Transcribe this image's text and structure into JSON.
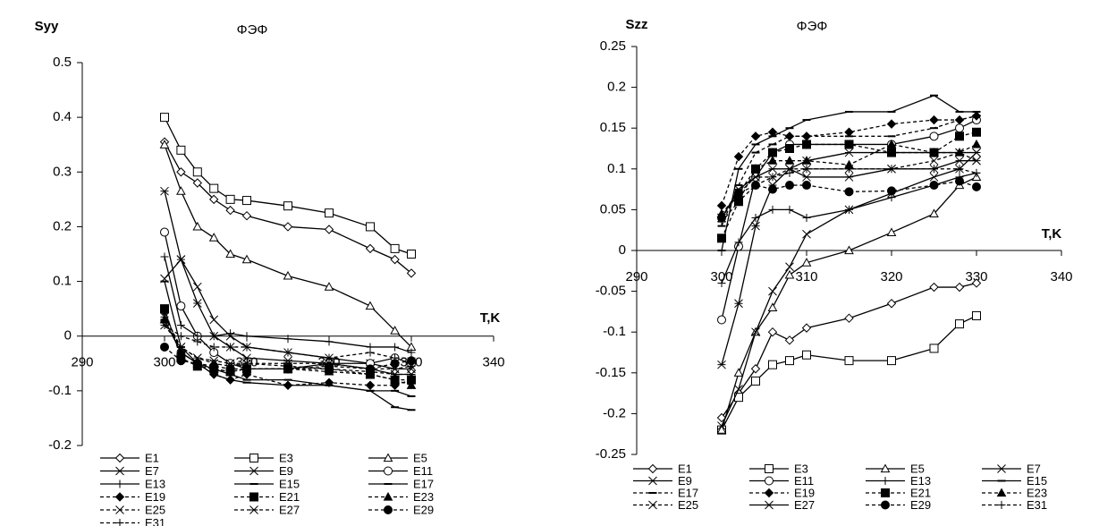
{
  "chart_data": [
    {
      "type": "line",
      "title": "ΦЭΦ",
      "y_label": "Syy",
      "x_label": "T,K",
      "x": [
        300,
        302,
        304,
        306,
        308,
        310,
        315,
        320,
        325,
        328,
        330
      ],
      "xlim": [
        290,
        340
      ],
      "xticks": [
        290,
        300,
        310,
        320,
        330,
        340
      ],
      "ylim": [
        -0.2,
        0.5
      ],
      "yticks": [
        -0.2,
        -0.1,
        0,
        0.1,
        0.2,
        0.3,
        0.4,
        0.5
      ],
      "series": [
        {
          "name": "E1",
          "color": "#000000",
          "marker": "diamond",
          "filled": false,
          "dashed": false,
          "values": [
            0.355,
            0.3,
            0.28,
            0.25,
            0.23,
            0.22,
            0.2,
            0.195,
            0.16,
            0.14,
            0.115
          ]
        },
        {
          "name": "E3",
          "color": "#000000",
          "marker": "square",
          "filled": false,
          "dashed": false,
          "values": [
            0.4,
            0.34,
            0.3,
            0.27,
            0.25,
            0.248,
            0.238,
            0.225,
            0.2,
            0.16,
            0.15
          ]
        },
        {
          "name": "E5",
          "color": "#000000",
          "marker": "triangle",
          "filled": false,
          "dashed": false,
          "values": [
            0.35,
            0.265,
            0.2,
            0.18,
            0.15,
            0.14,
            0.11,
            0.09,
            0.055,
            0.01,
            -0.02
          ]
        },
        {
          "name": "E7",
          "color": "#000000",
          "marker": "x",
          "filled": false,
          "dashed": false,
          "values": [
            0.105,
            0.14,
            0.09,
            0.03,
            0.0,
            -0.02,
            -0.03,
            -0.04,
            -0.05,
            -0.06,
            -0.06
          ]
        },
        {
          "name": "E9",
          "color": "#000000",
          "marker": "star",
          "filled": false,
          "dashed": false,
          "values": [
            0.265,
            0.14,
            0.06,
            0.0,
            -0.02,
            -0.04,
            -0.045,
            -0.05,
            -0.06,
            -0.07,
            -0.07
          ]
        },
        {
          "name": "E11",
          "color": "#000000",
          "marker": "circle",
          "filled": false,
          "dashed": false,
          "values": [
            0.19,
            0.055,
            0.0,
            -0.03,
            -0.05,
            -0.06,
            -0.06,
            -0.05,
            -0.05,
            -0.04,
            -0.05
          ]
        },
        {
          "name": "E13",
          "color": "#000000",
          "marker": "plus",
          "filled": false,
          "dashed": false,
          "values": [
            0.145,
            0.02,
            0.0,
            0.0,
            0.005,
            0.0,
            -0.005,
            -0.01,
            -0.02,
            -0.02,
            -0.03
          ]
        },
        {
          "name": "E15",
          "color": "#000000",
          "marker": "dash",
          "filled": false,
          "dashed": false,
          "values": [
            0.1,
            -0.02,
            -0.05,
            -0.06,
            -0.07,
            -0.08,
            -0.08,
            -0.09,
            -0.1,
            -0.13,
            -0.135
          ]
        },
        {
          "name": "E17",
          "color": "#000000",
          "marker": "dash",
          "filled": false,
          "dashed": false,
          "values": [
            0.03,
            -0.03,
            -0.05,
            -0.07,
            -0.08,
            -0.085,
            -0.09,
            -0.09,
            -0.1,
            -0.1,
            -0.11
          ]
        },
        {
          "name": "E19",
          "color": "#000000",
          "marker": "diamond",
          "filled": true,
          "dashed": true,
          "values": [
            0.045,
            -0.03,
            -0.05,
            -0.07,
            -0.08,
            -0.07,
            -0.09,
            -0.085,
            -0.09,
            -0.09,
            -0.08
          ]
        },
        {
          "name": "E21",
          "color": "#000000",
          "marker": "square",
          "filled": true,
          "dashed": true,
          "values": [
            0.05,
            -0.04,
            -0.055,
            -0.06,
            -0.065,
            -0.06,
            -0.06,
            -0.06,
            -0.07,
            -0.08,
            -0.08
          ]
        },
        {
          "name": "E23",
          "color": "#000000",
          "marker": "triangle",
          "filled": true,
          "dashed": true,
          "values": [
            0.03,
            -0.03,
            -0.05,
            -0.06,
            -0.065,
            -0.06,
            -0.06,
            -0.065,
            -0.07,
            -0.08,
            -0.09
          ]
        },
        {
          "name": "E25",
          "color": "#000000",
          "marker": "x",
          "filled": false,
          "dashed": true,
          "values": [
            0.02,
            -0.02,
            -0.04,
            -0.05,
            -0.055,
            -0.05,
            -0.055,
            -0.06,
            -0.065,
            -0.07,
            -0.07
          ]
        },
        {
          "name": "E27",
          "color": "#000000",
          "marker": "star",
          "filled": false,
          "dashed": true,
          "values": [
            0.035,
            -0.02,
            -0.04,
            -0.045,
            -0.05,
            -0.05,
            -0.05,
            -0.05,
            -0.06,
            -0.06,
            -0.055
          ]
        },
        {
          "name": "E29",
          "color": "#000000",
          "marker": "circle",
          "filled": true,
          "dashed": true,
          "values": [
            -0.02,
            -0.045,
            -0.05,
            -0.055,
            -0.06,
            -0.06,
            -0.06,
            -0.055,
            -0.06,
            -0.05,
            -0.045
          ]
        },
        {
          "name": "E31",
          "color": "#000000",
          "marker": "plus",
          "filled": false,
          "dashed": true,
          "values": [
            0.02,
            0.0,
            -0.01,
            -0.02,
            -0.02,
            -0.02,
            -0.03,
            -0.04,
            -0.03,
            -0.04,
            -0.04
          ]
        }
      ]
    },
    {
      "type": "line",
      "title": "ΦЭΦ",
      "y_label": "Szz",
      "x_label": "T,K",
      "x": [
        300,
        302,
        304,
        306,
        308,
        310,
        315,
        320,
        325,
        328,
        330
      ],
      "xlim": [
        290,
        340
      ],
      "xticks": [
        290,
        300,
        310,
        320,
        330,
        340
      ],
      "ylim": [
        -0.25,
        0.25
      ],
      "yticks": [
        -0.25,
        -0.2,
        -0.15,
        -0.1,
        -0.05,
        0,
        0.05,
        0.1,
        0.15,
        0.2,
        0.25
      ],
      "series": [
        {
          "name": "E1",
          "color": "#000000",
          "marker": "diamond",
          "filled": false,
          "dashed": false,
          "values": [
            -0.205,
            -0.175,
            -0.145,
            -0.1,
            -0.11,
            -0.095,
            -0.083,
            -0.065,
            -0.045,
            -0.045,
            -0.04
          ]
        },
        {
          "name": "E3",
          "color": "#000000",
          "marker": "square",
          "filled": false,
          "dashed": false,
          "values": [
            -0.22,
            -0.18,
            -0.16,
            -0.14,
            -0.135,
            -0.128,
            -0.135,
            -0.135,
            -0.12,
            -0.09,
            -0.08
          ]
        },
        {
          "name": "E5",
          "color": "#000000",
          "marker": "triangle",
          "filled": false,
          "dashed": false,
          "values": [
            -0.22,
            -0.15,
            -0.1,
            -0.07,
            -0.03,
            -0.015,
            0.0,
            0.022,
            0.045,
            0.08,
            0.09
          ]
        },
        {
          "name": "E7",
          "color": "#000000",
          "marker": "x",
          "filled": false,
          "dashed": false,
          "values": [
            -0.215,
            -0.17,
            -0.1,
            -0.05,
            -0.02,
            0.02,
            0.05,
            0.07,
            0.09,
            0.1,
            0.12
          ]
        },
        {
          "name": "E9",
          "color": "#000000",
          "marker": "star",
          "filled": false,
          "dashed": false,
          "values": [
            -0.14,
            -0.065,
            0.03,
            0.08,
            0.1,
            0.11,
            0.12,
            0.12,
            0.12,
            0.12,
            0.12
          ]
        },
        {
          "name": "E11",
          "color": "#000000",
          "marker": "circle",
          "filled": false,
          "dashed": false,
          "values": [
            -0.085,
            0.005,
            0.09,
            0.12,
            0.13,
            0.13,
            0.13,
            0.13,
            0.14,
            0.15,
            0.16
          ]
        },
        {
          "name": "E13",
          "color": "#000000",
          "marker": "plus",
          "filled": false,
          "dashed": false,
          "values": [
            -0.04,
            0.01,
            0.04,
            0.05,
            0.05,
            0.04,
            0.05,
            0.065,
            0.08,
            0.09,
            0.095
          ]
        },
        {
          "name": "E15",
          "color": "#000000",
          "marker": "dash",
          "filled": false,
          "dashed": false,
          "values": [
            0.0,
            0.1,
            0.13,
            0.14,
            0.15,
            0.16,
            0.17,
            0.17,
            0.19,
            0.17,
            0.17
          ]
        },
        {
          "name": "E17",
          "color": "#000000",
          "marker": "dash",
          "filled": false,
          "dashed": true,
          "values": [
            0.03,
            0.08,
            0.12,
            0.13,
            0.14,
            0.14,
            0.14,
            0.14,
            0.15,
            0.16,
            0.165
          ]
        },
        {
          "name": "E19",
          "color": "#000000",
          "marker": "diamond",
          "filled": true,
          "dashed": true,
          "values": [
            0.055,
            0.115,
            0.14,
            0.145,
            0.14,
            0.14,
            0.145,
            0.155,
            0.16,
            0.16,
            0.165
          ]
        },
        {
          "name": "E21",
          "color": "#000000",
          "marker": "square",
          "filled": true,
          "dashed": true,
          "values": [
            0.015,
            0.06,
            0.1,
            0.12,
            0.125,
            0.13,
            0.13,
            0.12,
            0.12,
            0.14,
            0.145
          ]
        },
        {
          "name": "E23",
          "color": "#000000",
          "marker": "triangle",
          "filled": true,
          "dashed": true,
          "values": [
            0.045,
            0.07,
            0.1,
            0.11,
            0.11,
            0.11,
            0.105,
            0.13,
            0.12,
            0.12,
            0.13
          ]
        },
        {
          "name": "E25",
          "color": "#000000",
          "marker": "x",
          "filled": false,
          "dashed": true,
          "values": [
            0.04,
            0.07,
            0.09,
            0.09,
            0.1,
            0.1,
            0.1,
            0.1,
            0.11,
            0.12,
            0.11
          ]
        },
        {
          "name": "E27",
          "color": "#000000",
          "marker": "star",
          "filled": false,
          "dashed": false,
          "values": [
            0.04,
            0.075,
            0.09,
            0.1,
            0.1,
            0.09,
            0.09,
            0.1,
            0.1,
            0.11,
            0.11
          ]
        },
        {
          "name": "E29",
          "color": "#000000",
          "marker": "circle",
          "filled": true,
          "dashed": true,
          "values": [
            0.04,
            0.07,
            0.08,
            0.075,
            0.08,
            0.08,
            0.072,
            0.073,
            0.08,
            0.085,
            0.078
          ]
        },
        {
          "name": "E31",
          "color": "#000000",
          "marker": "plus",
          "filled": false,
          "dashed": true,
          "values": [
            0.035,
            0.06,
            0.08,
            0.09,
            0.095,
            0.1,
            0.1,
            0.1,
            0.1,
            0.1,
            0.095
          ]
        }
      ]
    }
  ]
}
